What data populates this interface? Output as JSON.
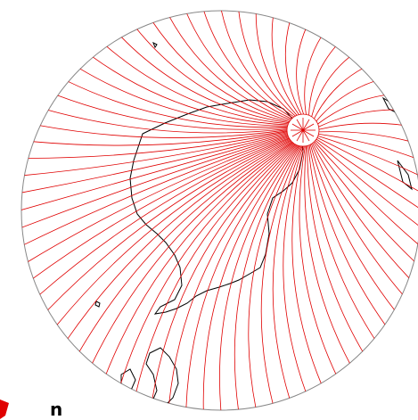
{
  "map": {
    "caption": "n"
  }
}
